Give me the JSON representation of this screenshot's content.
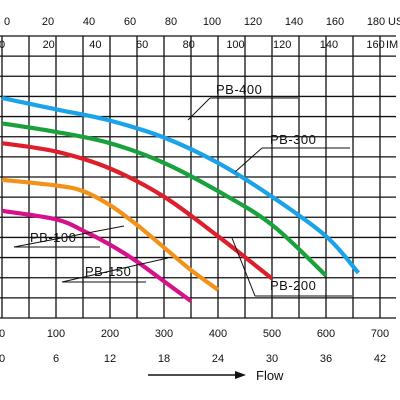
{
  "chart_data": {
    "type": "line",
    "title": "",
    "xlabel": "Flow",
    "ylabel": "",
    "xlim": [
      0,
      700
    ],
    "grid": true,
    "axes": {
      "top_us": {
        "unit": "US",
        "ticks": [
          "0",
          "20",
          "40",
          "60",
          "80",
          "100",
          "120",
          "140",
          "160",
          "180"
        ]
      },
      "top_im": {
        "unit": "IM",
        "ticks": [
          "0",
          "20",
          "40",
          "60",
          "80",
          "100",
          "120",
          "140",
          "160"
        ]
      },
      "bottom_lpm": {
        "ticks": [
          "0",
          "100",
          "200",
          "300",
          "400",
          "500",
          "600",
          "700"
        ]
      },
      "bottom_m3h": {
        "ticks": [
          "0",
          "6",
          "12",
          "18",
          "24",
          "30",
          "36",
          "42"
        ]
      }
    },
    "series": [
      {
        "name": "PB-400",
        "color": "#1aa3e8",
        "x": [
          0,
          100,
          200,
          300,
          400,
          500,
          600,
          660
        ],
        "y": [
          0.78,
          0.74,
          0.7,
          0.64,
          0.55,
          0.43,
          0.29,
          0.16
        ]
      },
      {
        "name": "PB-300",
        "color": "#19a13c",
        "x": [
          0,
          100,
          200,
          300,
          400,
          500,
          600
        ],
        "y": [
          0.69,
          0.66,
          0.62,
          0.55,
          0.45,
          0.33,
          0.15
        ]
      },
      {
        "name": "PB-200",
        "color": "#dd1e2b",
        "x": [
          0,
          100,
          200,
          300,
          400,
          500
        ],
        "y": [
          0.62,
          0.59,
          0.53,
          0.43,
          0.29,
          0.14
        ]
      },
      {
        "name": "PB-150",
        "color": "#f39219",
        "x": [
          0,
          100,
          150,
          200,
          250,
          300,
          350,
          400
        ],
        "y": [
          0.49,
          0.47,
          0.45,
          0.4,
          0.33,
          0.25,
          0.17,
          0.1
        ]
      },
      {
        "name": "PB-100",
        "color": "#d6128a",
        "x": [
          0,
          100,
          150,
          200,
          250,
          300,
          350
        ],
        "y": [
          0.38,
          0.35,
          0.31,
          0.26,
          0.2,
          0.13,
          0.06
        ]
      }
    ]
  }
}
